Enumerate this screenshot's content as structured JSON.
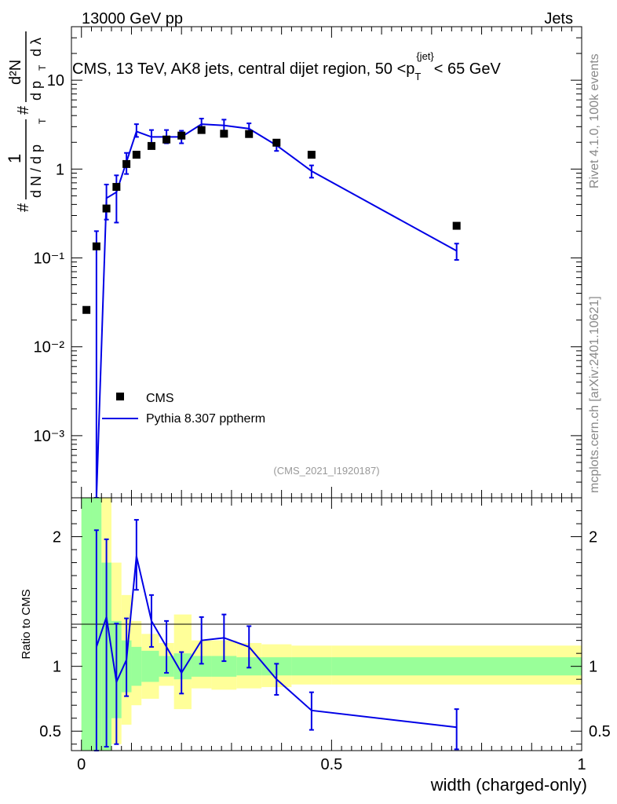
{
  "header": {
    "left": "13000 GeV pp",
    "right": "Jets"
  },
  "side": {
    "rivet": "Rivet 4.1.0,  100k events",
    "mcplots": "mcplots.cern.ch [arXiv:2401.10621]"
  },
  "colors": {
    "mc": "#0000e6",
    "data": "#000000",
    "band_inner": "#99ff99",
    "band_outer": "#ffff99"
  },
  "chart_data": [
    {
      "type": "scatter",
      "title": "CMS, 13 TeV, AK8 jets, central dijet region, 50 <p_T^{jet}< 65 GeV",
      "title_parts": {
        "main": "CMS, 13 TeV, AK8 jets, central dijet region, 50 <p",
        "sub": "T",
        "sup": "{jet}",
        "tail": "< 65 GeV"
      },
      "ylabel": "1/N dN/dp_T d^2N/dp_T dλ",
      "ylabel_parts": {
        "hash": "#",
        "one": "1",
        "den": "d N / d p",
        "num2": "d²N",
        "den2": "d p",
        "T": "T",
        "lambda": "d λ"
      },
      "yscale": "log",
      "ylim": [
        0.0002,
        40
      ],
      "xlim": [
        -0.02,
        1.0
      ],
      "ytick_labels": [
        "10⁻³",
        "10⁻²",
        "10⁻¹",
        "1",
        "10"
      ],
      "ytick_values": [
        0.001,
        0.01,
        0.1,
        1,
        10
      ],
      "watermark": "(CMS_2021_I1920187)",
      "legend": {
        "position": "bottom-left",
        "entries": [
          "CMS",
          "Pythia 8.307 pptherm"
        ]
      },
      "series": [
        {
          "name": "CMS",
          "style": "markers",
          "x": [
            0.01,
            0.03,
            0.05,
            0.07,
            0.09,
            0.11,
            0.14,
            0.17,
            0.2,
            0.24,
            0.285,
            0.335,
            0.39,
            0.46,
            0.75
          ],
          "y": [
            0.026,
            0.135,
            0.36,
            0.63,
            1.14,
            1.45,
            1.82,
            2.15,
            2.38,
            2.75,
            2.5,
            2.48,
            1.98,
            1.45,
            0.23
          ]
        },
        {
          "name": "Pythia 8.307 pptherm",
          "style": "line",
          "x": [
            0.03,
            0.05,
            0.07,
            0.09,
            0.11,
            0.14,
            0.17,
            0.2,
            0.24,
            0.285,
            0.335,
            0.39,
            0.46,
            0.75
          ],
          "y": [
            0.0002,
            0.47,
            0.55,
            1.2,
            2.65,
            2.3,
            2.3,
            2.3,
            3.2,
            3.1,
            2.85,
            1.85,
            0.95,
            0.12
          ],
          "err_low": [
            0.0,
            0.2,
            0.3,
            0.32,
            0.35,
            0.35,
            0.35,
            0.35,
            0.45,
            0.4,
            0.38,
            0.25,
            0.15,
            0.025
          ],
          "err_high": [
            0.2,
            0.2,
            0.3,
            0.32,
            0.55,
            0.45,
            0.45,
            0.4,
            0.5,
            0.5,
            0.42,
            0.25,
            0.15,
            0.025
          ]
        }
      ]
    },
    {
      "type": "line",
      "ylabel": "Ratio to CMS",
      "xlabel": "width (charged-only)",
      "xlim": [
        -0.02,
        1.0
      ],
      "ylim": [
        0.35,
        2.3
      ],
      "xtick_labels": [
        "0",
        "0.5",
        "1"
      ],
      "xtick_values": [
        0,
        0.5,
        1
      ],
      "ytick_labels": [
        "0.5",
        "1",
        "2"
      ],
      "ytick_values": [
        0.5,
        1,
        2
      ],
      "bands": {
        "edges": [
          0.0,
          0.02,
          0.04,
          0.06,
          0.08,
          0.1,
          0.12,
          0.155,
          0.185,
          0.22,
          0.26,
          0.31,
          0.36,
          0.42,
          0.5,
          1.0
        ],
        "inner_lo": [
          0.35,
          0.35,
          0.35,
          0.6,
          0.8,
          0.85,
          0.88,
          0.92,
          0.9,
          0.92,
          0.92,
          0.93,
          0.93,
          0.93,
          0.93
        ],
        "inner_hi": [
          2.3,
          2.3,
          1.8,
          1.35,
          1.2,
          1.15,
          1.12,
          1.08,
          1.1,
          1.08,
          1.08,
          1.07,
          1.07,
          1.07,
          1.07
        ],
        "outer_lo": [
          0.35,
          0.35,
          0.35,
          0.4,
          0.55,
          0.7,
          0.75,
          0.85,
          0.67,
          0.83,
          0.82,
          0.83,
          0.84,
          0.86,
          0.86
        ],
        "outer_hi": [
          2.3,
          2.3,
          2.3,
          1.8,
          1.55,
          1.35,
          1.25,
          1.18,
          1.4,
          1.2,
          1.2,
          1.18,
          1.17,
          1.16,
          1.16
        ]
      },
      "series": [
        {
          "name": "Pythia 8.307 pptherm / CMS",
          "x": [
            0.03,
            0.05,
            0.07,
            0.09,
            0.11,
            0.14,
            0.17,
            0.2,
            0.24,
            0.285,
            0.335,
            0.39,
            0.46,
            0.75
          ],
          "y": [
            1.15,
            1.38,
            0.88,
            1.05,
            1.85,
            1.35,
            1.15,
            0.95,
            1.2,
            1.22,
            1.15,
            0.9,
            0.66,
            0.53
          ],
          "err_low": [
            0.85,
            1.0,
            0.48,
            0.28,
            0.26,
            0.2,
            0.2,
            0.16,
            0.18,
            0.18,
            0.16,
            0.12,
            0.15,
            0.17
          ],
          "err_high": [
            0.9,
            0.6,
            0.45,
            0.32,
            0.28,
            0.2,
            0.2,
            0.16,
            0.18,
            0.18,
            0.16,
            0.12,
            0.14,
            0.14
          ]
        }
      ]
    }
  ]
}
